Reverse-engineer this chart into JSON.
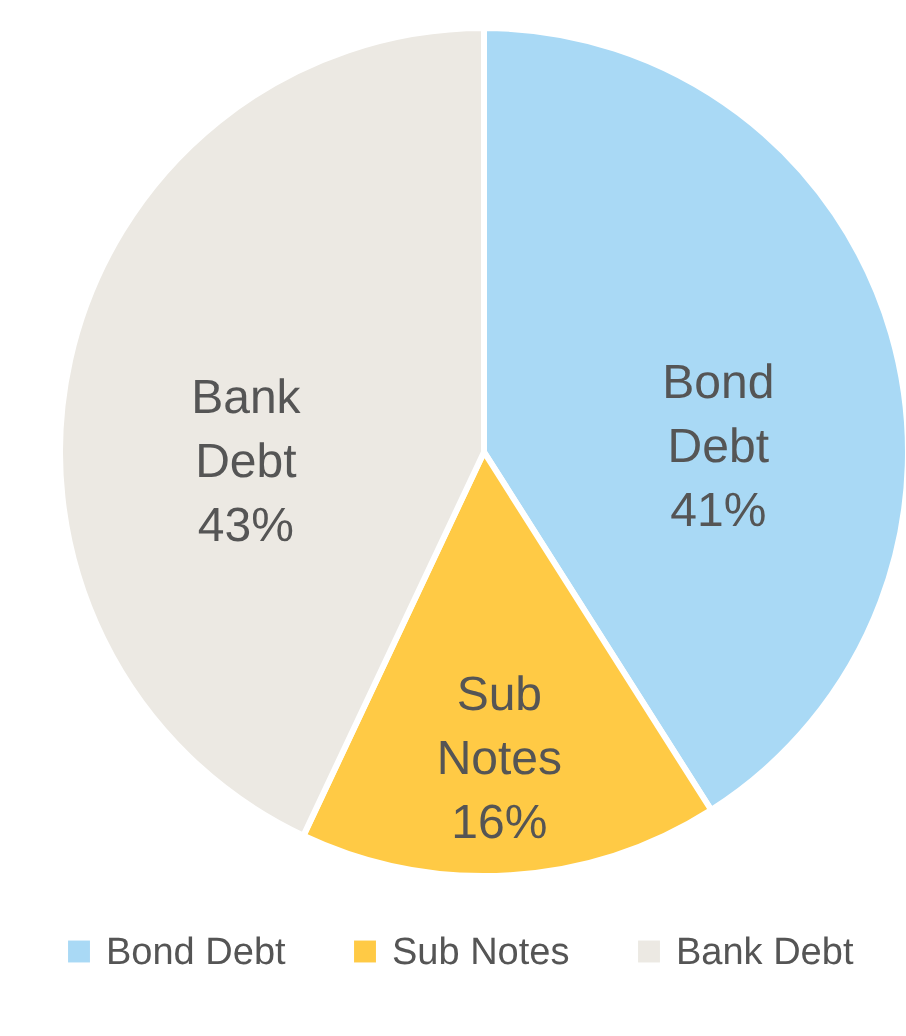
{
  "chart_data": {
    "type": "pie",
    "categories": [
      "Bond Debt",
      "Sub Notes",
      "Bank Debt"
    ],
    "values": [
      41,
      16,
      43
    ],
    "colors": [
      "#a9d9f5",
      "#ffca45",
      "#ece9e3"
    ],
    "value_labels": [
      "41%",
      "16%",
      "43%"
    ],
    "legend": "bottom"
  }
}
